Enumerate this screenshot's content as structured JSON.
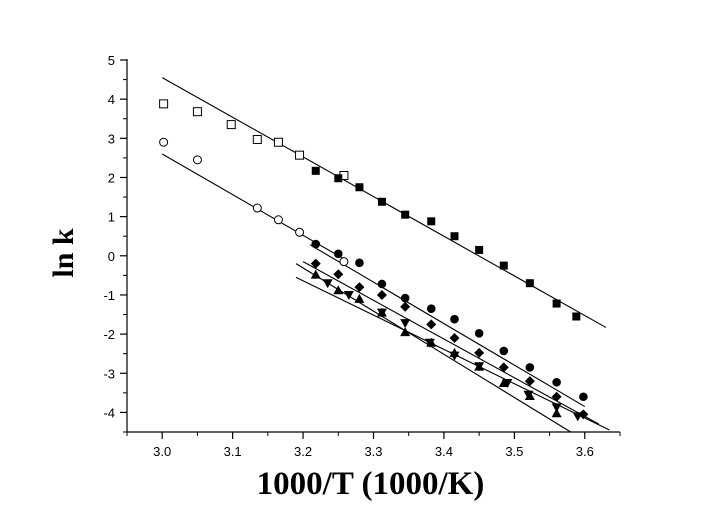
{
  "chart_data": {
    "type": "scatter",
    "xlabel": "1000/T (1000/K)",
    "ylabel": "ln k",
    "xlim": [
      2.95,
      3.65
    ],
    "ylim": [
      -4.5,
      5
    ],
    "xticks": [
      "3.0",
      "3.1",
      "3.2",
      "3.3",
      "3.4",
      "3.5",
      "3.6"
    ],
    "yticks": [
      "5",
      "4",
      "3",
      "2",
      "1",
      "0",
      "-1",
      "-2",
      "-3",
      "-4"
    ],
    "grid": false,
    "series": [
      {
        "marker": "open-square",
        "points": [
          [
            3.002,
            3.88
          ],
          [
            3.05,
            3.68
          ],
          [
            3.098,
            3.35
          ],
          [
            3.135,
            2.97
          ],
          [
            3.165,
            2.9
          ],
          [
            3.195,
            2.57
          ],
          [
            3.258,
            2.05
          ]
        ]
      },
      {
        "marker": "filled-square",
        "points": [
          [
            3.218,
            2.17
          ],
          [
            3.25,
            1.98
          ],
          [
            3.28,
            1.75
          ],
          [
            3.312,
            1.38
          ],
          [
            3.345,
            1.05
          ],
          [
            3.382,
            0.88
          ],
          [
            3.415,
            0.5
          ],
          [
            3.45,
            0.15
          ],
          [
            3.485,
            -0.25
          ],
          [
            3.522,
            -0.7
          ],
          [
            3.56,
            -1.22
          ],
          [
            3.588,
            -1.55
          ]
        ]
      },
      {
        "marker": "open-circle",
        "points": [
          [
            3.002,
            2.9
          ],
          [
            3.05,
            2.45
          ],
          [
            3.135,
            1.22
          ],
          [
            3.165,
            0.92
          ],
          [
            3.195,
            0.6
          ],
          [
            3.258,
            -0.15
          ]
        ]
      },
      {
        "marker": "filled-circle",
        "points": [
          [
            3.218,
            0.3
          ],
          [
            3.25,
            0.05
          ],
          [
            3.28,
            -0.18
          ],
          [
            3.312,
            -0.72
          ],
          [
            3.345,
            -1.08
          ],
          [
            3.382,
            -1.35
          ],
          [
            3.415,
            -1.62
          ],
          [
            3.45,
            -1.98
          ],
          [
            3.485,
            -2.43
          ],
          [
            3.522,
            -2.85
          ],
          [
            3.56,
            -3.23
          ],
          [
            3.598,
            -3.6
          ]
        ]
      },
      {
        "marker": "filled-diamond",
        "points": [
          [
            3.218,
            -0.2
          ],
          [
            3.25,
            -0.47
          ],
          [
            3.28,
            -0.8
          ],
          [
            3.312,
            -1.0
          ],
          [
            3.345,
            -1.3
          ],
          [
            3.382,
            -1.75
          ],
          [
            3.415,
            -2.1
          ],
          [
            3.45,
            -2.48
          ],
          [
            3.485,
            -2.85
          ],
          [
            3.522,
            -3.2
          ],
          [
            3.56,
            -3.6
          ],
          [
            3.598,
            -4.05
          ]
        ]
      },
      {
        "marker": "filled-triangle-up",
        "points": [
          [
            3.218,
            -0.48
          ],
          [
            3.25,
            -0.88
          ],
          [
            3.28,
            -1.1
          ],
          [
            3.312,
            -1.45
          ],
          [
            3.345,
            -1.95
          ],
          [
            3.382,
            -2.22
          ],
          [
            3.415,
            -2.48
          ],
          [
            3.45,
            -2.83
          ],
          [
            3.485,
            -3.25
          ],
          [
            3.522,
            -3.58
          ],
          [
            3.56,
            -4.02
          ]
        ]
      },
      {
        "marker": "filled-triangle-down",
        "points": [
          [
            3.235,
            -0.7
          ],
          [
            3.265,
            -1.0
          ],
          [
            3.312,
            -1.45
          ],
          [
            3.345,
            -1.72
          ],
          [
            3.38,
            -2.22
          ],
          [
            3.415,
            -2.55
          ],
          [
            3.45,
            -2.82
          ],
          [
            3.49,
            -3.25
          ],
          [
            3.52,
            -3.55
          ],
          [
            3.56,
            -3.87
          ],
          [
            3.59,
            -4.1
          ]
        ]
      }
    ],
    "fit_lines": [
      {
        "x": [
          3.0,
          3.63
        ],
        "y": [
          4.55,
          -1.83
        ]
      },
      {
        "x": [
          3.0,
          3.26
        ],
        "y": [
          2.6,
          -0.1
        ]
      },
      {
        "x": [
          3.21,
          3.6
        ],
        "y": [
          0.28,
          -3.85
        ]
      },
      {
        "x": [
          3.2,
          3.62
        ],
        "y": [
          -0.15,
          -4.3
        ]
      },
      {
        "x": [
          3.19,
          3.58
        ],
        "y": [
          -0.2,
          -4.5
        ]
      },
      {
        "x": [
          3.19,
          3.635
        ],
        "y": [
          -0.55,
          -4.45
        ]
      }
    ]
  }
}
